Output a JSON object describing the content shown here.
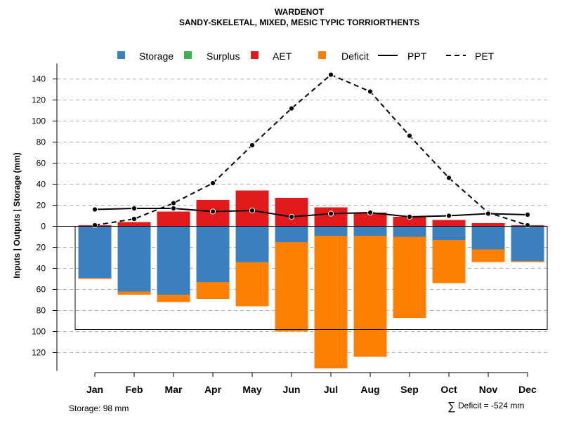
{
  "chart_data": {
    "type": "bar",
    "title": "WARDENOT",
    "subtitle": "SANDY-SKELETAL, MIXED, MESIC TYPIC TORRIORTHENTS",
    "ylabel": "Inputs | Outputs | Storage    (mm)",
    "categories": [
      "Jan",
      "Feb",
      "Mar",
      "Apr",
      "May",
      "Jun",
      "Jul",
      "Aug",
      "Sep",
      "Oct",
      "Nov",
      "Dec"
    ],
    "ylim": [
      -135,
      150
    ],
    "yticks": [
      140,
      120,
      100,
      80,
      60,
      40,
      20,
      0,
      -20,
      -40,
      -60,
      -80,
      -100,
      -120
    ],
    "ytick_labels": [
      "140",
      "120",
      "100",
      "80",
      "60",
      "40",
      "20",
      "0",
      "20",
      "40",
      "60",
      "80",
      "100",
      "120"
    ],
    "storage_capacity": -98,
    "legend": [
      {
        "key": "storage",
        "label": "Storage",
        "kind": "box",
        "color": "#3a7fbf"
      },
      {
        "key": "surplus",
        "label": "Surplus",
        "kind": "box",
        "color": "#3cb44b"
      },
      {
        "key": "aet",
        "label": "AET",
        "kind": "box",
        "color": "#e31a1c"
      },
      {
        "key": "deficit",
        "label": "Deficit",
        "kind": "box",
        "color": "#ff8000"
      },
      {
        "key": "ppt",
        "label": "PPT",
        "kind": "solid",
        "color": "#000000"
      },
      {
        "key": "pet",
        "label": "PET",
        "kind": "dashed",
        "color": "#000000"
      }
    ],
    "series": [
      {
        "name": "AET",
        "color": "#e31a1c",
        "values": [
          1,
          4,
          14,
          25,
          34,
          27,
          18,
          13,
          9,
          6,
          3,
          1
        ]
      },
      {
        "name": "Storage",
        "color": "#3a7fbf",
        "values": [
          -49,
          -62,
          -65,
          -53,
          -34,
          -15,
          -9,
          -9,
          -10,
          -13,
          -22,
          -33
        ]
      },
      {
        "name": "Deficit",
        "color": "#ff8000",
        "values": [
          -1,
          -3,
          -7,
          -16,
          -42,
          -85,
          -126,
          -115,
          -77,
          -41,
          -12,
          -1
        ]
      },
      {
        "name": "Surplus",
        "color": "#3cb44b",
        "values": [
          0,
          0,
          0,
          0,
          0,
          0,
          0,
          0,
          0,
          0,
          0,
          0
        ]
      },
      {
        "name": "PPT",
        "color": "#000000",
        "values": [
          16,
          17,
          17,
          14,
          15,
          9,
          12,
          13,
          9,
          10,
          12,
          11
        ]
      },
      {
        "name": "PET",
        "color": "#000000",
        "values": [
          1,
          7,
          22,
          41,
          77,
          112,
          144,
          128,
          86,
          46,
          13,
          1
        ]
      }
    ],
    "footer_left": "Storage: 98 mm",
    "footer_right_symbol": "∑",
    "footer_right": "Deficit = -524 mm"
  }
}
